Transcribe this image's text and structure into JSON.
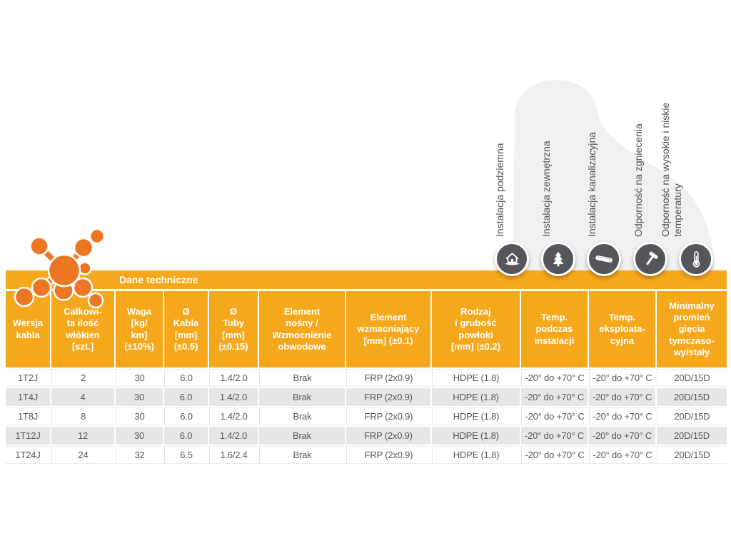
{
  "colors": {
    "amber": "#F6A81C",
    "logo_orange": "#ED7623",
    "icon_circle_gray": "#54565A",
    "row_alt_gray": "#E6E6E6",
    "cell_text": "#58585A",
    "label_text": "#4F5054",
    "background_blob": "#F0F0EE"
  },
  "features": [
    {
      "label": "Instalacja podziemna",
      "icon": "house-underground-icon"
    },
    {
      "label": "Instalacja zewnętrzna",
      "icon": "pine-tree-icon"
    },
    {
      "label": "Instalacja kanalizacyjna",
      "icon": "duct-pipe-icon"
    },
    {
      "label": "Odporność na zgniecenia",
      "icon": "hammer-icon"
    },
    {
      "label": "Odporność na wysokie i niskie\ntemperatury",
      "icon": "thermometer-icon"
    }
  ],
  "table": {
    "title": "Dane techniczne",
    "columns": [
      {
        "label": "Wersja\nkabla"
      },
      {
        "label": "Całkowi-\nta ilość\nwłókien\n[szt.]"
      },
      {
        "label": "Waga\n[kg/\nkm]\n(±10%)"
      },
      {
        "label": "Ø\nKabla\n[mm]\n(±0.5)"
      },
      {
        "label": "Ø\nTuby\n[mm]\n(±0.15)"
      },
      {
        "label": "Element\nnośny /\nWzmocnienie\nobwodowe"
      },
      {
        "label": "Element\nwzmacniający\n[mm] (±0.1)"
      },
      {
        "label": "Rodzaj\ni grubość\npowłoki\n[mm] (±0.2)"
      },
      {
        "label": "Temp.\npodczas\ninstalacji"
      },
      {
        "label": "Temp.\neksploata-\ncyjna"
      },
      {
        "label": "Minimalny\npromień\ngięcia\ntymczaso-\nwy/stały"
      }
    ],
    "rows": [
      [
        "1T2J",
        "2",
        "30",
        "6.0",
        "1.4/2.0",
        "Brak",
        "FRP (2x0.9)",
        "HDPE (1.8)",
        "-20° do +70° C",
        "-20° do +70° C",
        "20D/15D"
      ],
      [
        "1T4J",
        "4",
        "30",
        "6.0",
        "1.4/2.0",
        "Brak",
        "FRP (2x0.9)",
        "HDPE (1.8)",
        "-20° do +70° C",
        "-20° do +70° C",
        "20D/15D"
      ],
      [
        "1T8J",
        "8",
        "30",
        "6.0",
        "1.4/2.0",
        "Brak",
        "FRP (2x0.9)",
        "HDPE (1.8)",
        "-20° do +70° C",
        "-20° do +70° C",
        "20D/15D"
      ],
      [
        "1T12J",
        "12",
        "30",
        "6.0",
        "1.4/2.0",
        "Brak",
        "FRP (2x0.9)",
        "HDPE (1.8)",
        "-20° do +70° C",
        "-20° do +70° C",
        "20D/15D"
      ],
      [
        "1T24J",
        "24",
        "32",
        "6.5",
        "1.6/2.4",
        "Brak",
        "FRP (2x0.9)",
        "HDPE (1.8)",
        "-20° do +70° C",
        "-20° do +70° C",
        "20D/15D"
      ]
    ]
  }
}
